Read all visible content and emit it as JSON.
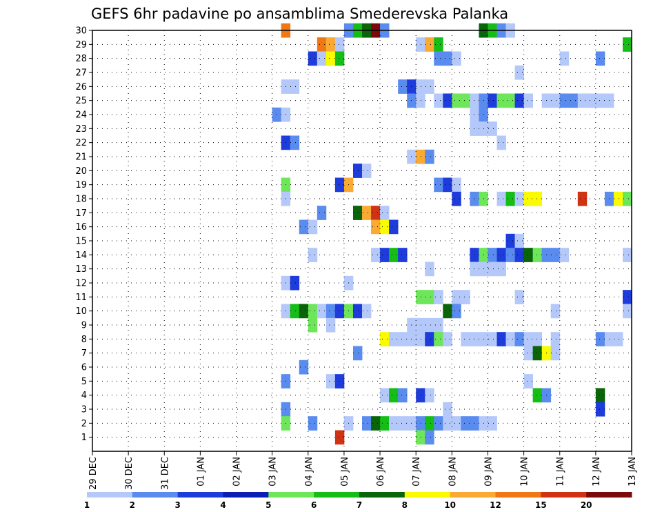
{
  "chart_data": {
    "type": "heatmap",
    "title": "GEFS 6hr padavine po ansamblima Smederevska Palanka",
    "x_tick_labels": [
      "29 DEC",
      "30 DEC",
      "31 DEC",
      "01 JAN",
      "02 JAN",
      "03 JAN",
      "04 JAN",
      "05 JAN",
      "06 JAN",
      "07 JAN",
      "08 JAN",
      "09 JAN",
      "10 JAN",
      "11 JAN",
      "12 JAN",
      "13 JAN"
    ],
    "y_tick_labels": [
      "1",
      "2",
      "3",
      "4",
      "5",
      "6",
      "7",
      "8",
      "9",
      "10",
      "11",
      "12",
      "13",
      "14",
      "15",
      "16",
      "17",
      "18",
      "19",
      "20",
      "21",
      "22",
      "23",
      "24",
      "25",
      "26",
      "27",
      "28",
      "29",
      "30"
    ],
    "x_range": [
      0,
      60
    ],
    "y_range": [
      0,
      30
    ],
    "grid": true,
    "legend_placement": "bottom",
    "legend": {
      "labels": [
        "1",
        "2",
        "3",
        "4",
        "5",
        "6",
        "7",
        "8",
        "10",
        "12",
        "15",
        "20"
      ],
      "colors": [
        "#b4c8fa",
        "#5a8cf0",
        "#1e3cdc",
        "#0a1eb4",
        "#6ee65a",
        "#14be14",
        "#0a640a",
        "#fafa00",
        "#faaa32",
        "#f07814",
        "#d23214",
        "#7d0a0a"
      ]
    },
    "cells": [
      [
        21,
        30,
        10
      ],
      [
        28,
        30,
        2
      ],
      [
        29,
        30,
        6
      ],
      [
        30,
        30,
        7
      ],
      [
        31,
        30,
        12
      ],
      [
        32,
        30,
        2
      ],
      [
        43,
        30,
        7
      ],
      [
        44,
        30,
        6
      ],
      [
        45,
        30,
        2
      ],
      [
        46,
        30,
        1
      ],
      [
        25,
        29,
        10
      ],
      [
        26,
        29,
        9
      ],
      [
        27,
        29,
        1
      ],
      [
        36,
        29,
        1
      ],
      [
        37,
        29,
        9
      ],
      [
        38,
        29,
        6
      ],
      [
        59,
        29,
        6
      ],
      [
        24,
        28,
        3
      ],
      [
        25,
        28,
        1
      ],
      [
        26,
        28,
        8
      ],
      [
        27,
        28,
        6
      ],
      [
        38,
        28,
        2
      ],
      [
        39,
        28,
        2
      ],
      [
        40,
        28,
        1
      ],
      [
        52,
        28,
        1
      ],
      [
        56,
        28,
        2
      ],
      [
        47,
        27,
        1
      ],
      [
        21,
        26,
        1
      ],
      [
        22,
        26,
        1
      ],
      [
        34,
        26,
        2
      ],
      [
        35,
        26,
        3
      ],
      [
        36,
        26,
        1
      ],
      [
        37,
        26,
        1
      ],
      [
        35,
        25,
        2
      ],
      [
        36,
        25,
        1
      ],
      [
        38,
        25,
        1
      ],
      [
        39,
        25,
        3
      ],
      [
        40,
        25,
        5
      ],
      [
        41,
        25,
        5
      ],
      [
        42,
        25,
        1
      ],
      [
        43,
        25,
        2
      ],
      [
        44,
        25,
        3
      ],
      [
        45,
        25,
        5
      ],
      [
        46,
        25,
        5
      ],
      [
        47,
        25,
        3
      ],
      [
        48,
        25,
        1
      ],
      [
        50,
        25,
        1
      ],
      [
        51,
        25,
        1
      ],
      [
        52,
        25,
        2
      ],
      [
        53,
        25,
        2
      ],
      [
        54,
        25,
        1
      ],
      [
        55,
        25,
        1
      ],
      [
        56,
        25,
        1
      ],
      [
        57,
        25,
        1
      ],
      [
        20,
        24,
        2
      ],
      [
        21,
        24,
        1
      ],
      [
        42,
        24,
        1
      ],
      [
        43,
        24,
        2
      ],
      [
        42,
        23,
        1
      ],
      [
        43,
        23,
        1
      ],
      [
        44,
        23,
        1
      ],
      [
        21,
        22,
        3
      ],
      [
        22,
        22,
        2
      ],
      [
        45,
        22,
        1
      ],
      [
        35,
        21,
        1
      ],
      [
        36,
        21,
        9
      ],
      [
        37,
        21,
        2
      ],
      [
        29,
        20,
        3
      ],
      [
        30,
        20,
        1
      ],
      [
        21,
        19,
        5
      ],
      [
        27,
        19,
        3
      ],
      [
        28,
        19,
        9
      ],
      [
        38,
        19,
        2
      ],
      [
        39,
        19,
        3
      ],
      [
        40,
        19,
        1
      ],
      [
        21,
        18,
        1
      ],
      [
        40,
        18,
        3
      ],
      [
        42,
        18,
        2
      ],
      [
        43,
        18,
        5
      ],
      [
        45,
        18,
        1
      ],
      [
        46,
        18,
        6
      ],
      [
        47,
        18,
        1
      ],
      [
        48,
        18,
        8
      ],
      [
        49,
        18,
        8
      ],
      [
        54,
        18,
        11
      ],
      [
        57,
        18,
        2
      ],
      [
        58,
        18,
        8
      ],
      [
        59,
        18,
        5
      ],
      [
        25,
        17,
        2
      ],
      [
        29,
        17,
        7
      ],
      [
        30,
        17,
        9
      ],
      [
        31,
        17,
        11
      ],
      [
        32,
        17,
        1
      ],
      [
        23,
        16,
        2
      ],
      [
        24,
        16,
        1
      ],
      [
        31,
        16,
        9
      ],
      [
        32,
        16,
        8
      ],
      [
        33,
        16,
        3
      ],
      [
        46,
        15,
        3
      ],
      [
        47,
        15,
        1
      ],
      [
        24,
        14,
        1
      ],
      [
        31,
        14,
        1
      ],
      [
        32,
        14,
        3
      ],
      [
        33,
        14,
        6
      ],
      [
        34,
        14,
        3
      ],
      [
        42,
        14,
        3
      ],
      [
        43,
        14,
        5
      ],
      [
        44,
        14,
        2
      ],
      [
        45,
        14,
        3
      ],
      [
        46,
        14,
        2
      ],
      [
        47,
        14,
        3
      ],
      [
        48,
        14,
        7
      ],
      [
        49,
        14,
        5
      ],
      [
        50,
        14,
        2
      ],
      [
        51,
        14,
        2
      ],
      [
        52,
        14,
        1
      ],
      [
        59,
        14,
        1
      ],
      [
        37,
        13,
        1
      ],
      [
        42,
        13,
        1
      ],
      [
        43,
        13,
        1
      ],
      [
        44,
        13,
        1
      ],
      [
        45,
        13,
        1
      ],
      [
        21,
        12,
        1
      ],
      [
        22,
        12,
        3
      ],
      [
        28,
        12,
        1
      ],
      [
        36,
        11,
        5
      ],
      [
        37,
        11,
        5
      ],
      [
        38,
        11,
        1
      ],
      [
        40,
        11,
        1
      ],
      [
        41,
        11,
        1
      ],
      [
        47,
        11,
        1
      ],
      [
        59,
        11,
        3
      ],
      [
        21,
        10,
        1
      ],
      [
        22,
        10,
        6
      ],
      [
        23,
        10,
        7
      ],
      [
        24,
        10,
        5
      ],
      [
        25,
        10,
        1
      ],
      [
        26,
        10,
        2
      ],
      [
        27,
        10,
        3
      ],
      [
        28,
        10,
        5
      ],
      [
        29,
        10,
        3
      ],
      [
        30,
        10,
        1
      ],
      [
        39,
        10,
        7
      ],
      [
        40,
        10,
        2
      ],
      [
        51,
        10,
        1
      ],
      [
        59,
        10,
        1
      ],
      [
        24,
        9,
        5
      ],
      [
        26,
        9,
        1
      ],
      [
        35,
        9,
        1
      ],
      [
        36,
        9,
        1
      ],
      [
        37,
        9,
        1
      ],
      [
        38,
        9,
        1
      ],
      [
        32,
        8,
        8
      ],
      [
        33,
        8,
        1
      ],
      [
        34,
        8,
        1
      ],
      [
        35,
        8,
        1
      ],
      [
        36,
        8,
        1
      ],
      [
        37,
        8,
        3
      ],
      [
        38,
        8,
        5
      ],
      [
        39,
        8,
        1
      ],
      [
        41,
        8,
        1
      ],
      [
        42,
        8,
        1
      ],
      [
        43,
        8,
        1
      ],
      [
        44,
        8,
        1
      ],
      [
        45,
        8,
        3
      ],
      [
        46,
        8,
        1
      ],
      [
        47,
        8,
        2
      ],
      [
        48,
        8,
        1
      ],
      [
        49,
        8,
        1
      ],
      [
        51,
        8,
        1
      ],
      [
        56,
        8,
        2
      ],
      [
        57,
        8,
        1
      ],
      [
        58,
        8,
        1
      ],
      [
        29,
        7,
        2
      ],
      [
        48,
        7,
        1
      ],
      [
        49,
        7,
        7
      ],
      [
        50,
        7,
        8
      ],
      [
        51,
        7,
        1
      ],
      [
        23,
        6,
        2
      ],
      [
        21,
        5,
        2
      ],
      [
        26,
        5,
        1
      ],
      [
        27,
        5,
        3
      ],
      [
        48,
        5,
        1
      ],
      [
        32,
        4,
        1
      ],
      [
        33,
        4,
        6
      ],
      [
        34,
        4,
        2
      ],
      [
        36,
        4,
        3
      ],
      [
        37,
        4,
        1
      ],
      [
        49,
        4,
        6
      ],
      [
        50,
        4,
        2
      ],
      [
        56,
        4,
        7
      ],
      [
        21,
        3,
        2
      ],
      [
        39,
        3,
        1
      ],
      [
        56,
        3,
        3
      ],
      [
        21,
        2,
        5
      ],
      [
        24,
        2,
        2
      ],
      [
        28,
        2,
        1
      ],
      [
        30,
        2,
        2
      ],
      [
        31,
        2,
        7
      ],
      [
        32,
        2,
        6
      ],
      [
        33,
        2,
        1
      ],
      [
        34,
        2,
        1
      ],
      [
        35,
        2,
        1
      ],
      [
        36,
        2,
        2
      ],
      [
        37,
        2,
        6
      ],
      [
        38,
        2,
        2
      ],
      [
        39,
        2,
        1
      ],
      [
        40,
        2,
        1
      ],
      [
        41,
        2,
        2
      ],
      [
        42,
        2,
        2
      ],
      [
        43,
        2,
        1
      ],
      [
        44,
        2,
        1
      ],
      [
        27,
        1,
        11
      ],
      [
        36,
        1,
        5
      ],
      [
        37,
        1,
        2
      ]
    ]
  }
}
